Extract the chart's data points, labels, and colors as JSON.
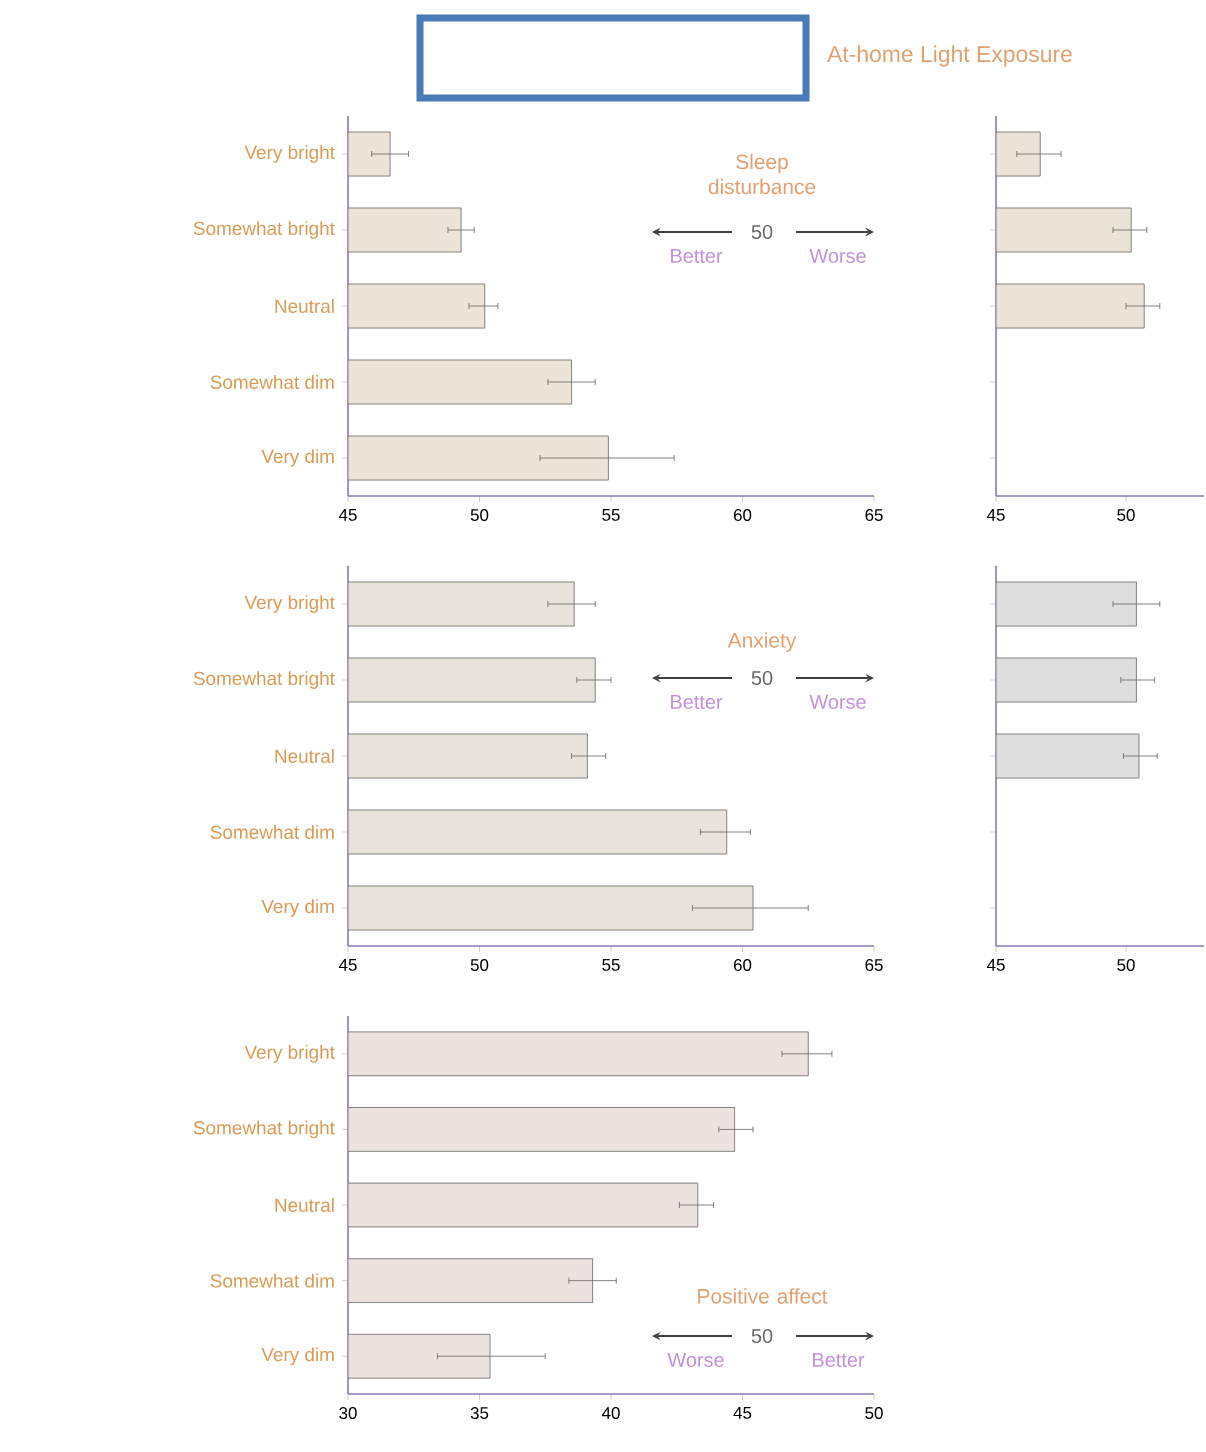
{
  "chart_data": [
    {
      "type": "bar",
      "orientation": "horizontal",
      "title": "At-home Light Exposure",
      "subtitle": "Sleep disturbance",
      "categories": [
        "Very bright",
        "Somewhat bright",
        "Neutral",
        "Somewhat dim",
        "Very dim"
      ],
      "values": [
        46.6,
        49.3,
        50.2,
        53.5,
        54.9
      ],
      "errors": [
        [
          45.9,
          47.3
        ],
        [
          48.8,
          49.8
        ],
        [
          49.6,
          50.7
        ],
        [
          52.6,
          54.4
        ],
        [
          52.3,
          57.4
        ]
      ],
      "color": "#ece4d6",
      "xlim": [
        45,
        65
      ],
      "xticks": [
        45,
        50,
        55,
        60,
        65
      ],
      "annotations": [
        "50",
        "Better",
        "Worse"
      ]
    },
    {
      "type": "bar",
      "orientation": "horizontal",
      "categories": [
        null,
        null,
        null,
        null,
        null
      ],
      "values": [
        46.7,
        50.2,
        50.7,
        null,
        null
      ],
      "errors": [
        [
          45.8,
          47.5
        ],
        [
          49.5,
          50.8
        ],
        [
          50.0,
          51.3
        ],
        null,
        null
      ],
      "color": "#ebe4d6",
      "xlim": [
        45,
        53
      ],
      "xticks": [
        45,
        50
      ]
    },
    {
      "type": "bar",
      "orientation": "horizontal",
      "subtitle": "Anxiety",
      "categories": [
        "Very bright",
        "Somewhat bright",
        "Neutral",
        "Somewhat dim",
        "Very dim"
      ],
      "values": [
        53.6,
        54.4,
        54.1,
        59.4,
        60.4
      ],
      "errors": [
        [
          52.6,
          54.4
        ],
        [
          53.7,
          55.0
        ],
        [
          53.5,
          54.8
        ],
        [
          58.4,
          60.3
        ],
        [
          58.1,
          62.5
        ]
      ],
      "color": "#e8e4dc",
      "xlim": [
        45,
        65
      ],
      "xticks": [
        45,
        50,
        55,
        60,
        65
      ],
      "annotations": [
        "50",
        "Better",
        "Worse"
      ]
    },
    {
      "type": "bar",
      "orientation": "horizontal",
      "categories": [
        null,
        null,
        null,
        null,
        null
      ],
      "values": [
        50.4,
        50.4,
        50.5,
        null,
        null
      ],
      "errors": [
        [
          49.5,
          51.3
        ],
        [
          49.8,
          51.1
        ],
        [
          49.9,
          51.2
        ],
        null,
        null
      ],
      "color": "#dedede",
      "xlim": [
        45,
        53
      ],
      "xticks": [
        45,
        50
      ]
    },
    {
      "type": "bar",
      "orientation": "horizontal",
      "subtitle": "Positive affect",
      "categories": [
        "Very bright",
        "Somewhat bright",
        "Neutral",
        "Somewhat dim",
        "Very dim"
      ],
      "values": [
        47.5,
        44.7,
        43.3,
        39.3,
        35.4
      ],
      "errors": [
        [
          46.5,
          48.4
        ],
        [
          44.1,
          45.4
        ],
        [
          42.6,
          43.9
        ],
        [
          38.4,
          40.2
        ],
        [
          33.4,
          37.5
        ]
      ],
      "color": "#ece3e0",
      "xlim": [
        30,
        50
      ],
      "xticks": [
        30,
        35,
        40,
        45,
        50
      ],
      "annotations": [
        "50",
        "Worse",
        "Better"
      ]
    }
  ]
}
